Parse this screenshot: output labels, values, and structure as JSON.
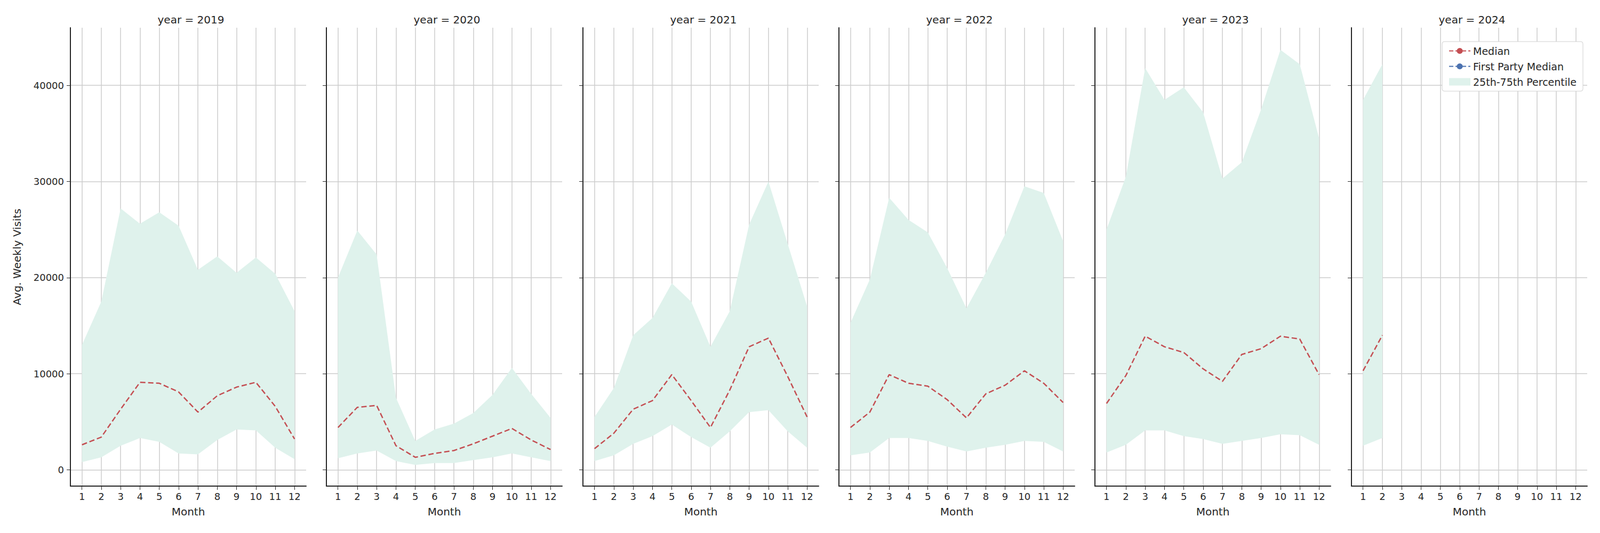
{
  "chart_data": [
    {
      "type": "line",
      "title": "year = 2019",
      "xlabel": "Month",
      "ylabel": "Avg. Weekly Visits",
      "x": [
        1,
        2,
        3,
        4,
        5,
        6,
        7,
        8,
        9,
        10,
        11,
        12
      ],
      "xlim": [
        0.4,
        12.6
      ],
      "xticks": [
        1,
        2,
        3,
        4,
        5,
        6,
        7,
        8,
        9,
        10,
        11,
        12
      ],
      "ylim": [
        -1700,
        46000
      ],
      "yticks": [
        0,
        10000,
        20000,
        30000,
        40000
      ],
      "grid": true,
      "series": [
        {
          "name": "Median",
          "color": "#c44e52",
          "line_style": "dashed",
          "values": [
            2600,
            3400,
            6300,
            9100,
            9000,
            8100,
            6000,
            7700,
            8600,
            9100,
            6600,
            3200
          ]
        },
        {
          "name": "First Party Median",
          "color": "#4c72b0",
          "line_style": "dashed",
          "values": [
            null,
            null,
            null,
            null,
            null,
            null,
            null,
            null,
            null,
            null,
            null,
            null
          ]
        },
        {
          "name": "25th-75th Percentile",
          "type": "area",
          "color": "#dff2ec",
          "lower": [
            800,
            1300,
            2500,
            3300,
            2900,
            1700,
            1600,
            3100,
            4200,
            4100,
            2300,
            1100
          ],
          "upper": [
            13000,
            17500,
            27200,
            25600,
            26800,
            25400,
            20800,
            22200,
            20500,
            22100,
            20400,
            16500
          ]
        }
      ]
    },
    {
      "type": "line",
      "title": "year = 2020",
      "xlabel": "Month",
      "x": [
        1,
        2,
        3,
        4,
        5,
        6,
        7,
        8,
        9,
        10,
        11,
        12
      ],
      "xlim": [
        0.4,
        12.6
      ],
      "xticks": [
        1,
        2,
        3,
        4,
        5,
        6,
        7,
        8,
        9,
        10,
        11,
        12
      ],
      "ylim": [
        -1700,
        46000
      ],
      "yticks": [
        0,
        10000,
        20000,
        30000,
        40000
      ],
      "grid": true,
      "tick_labels": "x",
      "series": [
        {
          "name": "Median",
          "color": "#c44e52",
          "line_style": "dashed",
          "values": [
            4400,
            6500,
            6700,
            2500,
            1300,
            1700,
            2000,
            2700,
            3500,
            4300,
            3100,
            2100
          ]
        },
        {
          "name": "First Party Median",
          "color": "#4c72b0",
          "line_style": "dashed",
          "values": [
            null,
            null,
            null,
            null,
            null,
            null,
            null,
            null,
            null,
            null,
            null,
            null
          ]
        },
        {
          "name": "25th-75th Percentile",
          "type": "area",
          "color": "#dff2ec",
          "lower": [
            1200,
            1700,
            2000,
            900,
            500,
            700,
            700,
            1000,
            1300,
            1700,
            1300,
            900
          ],
          "upper": [
            20000,
            24900,
            22400,
            7500,
            3000,
            4200,
            4800,
            5900,
            7800,
            10600,
            7900,
            5400
          ]
        }
      ]
    },
    {
      "type": "line",
      "title": "year = 2021",
      "xlabel": "Month",
      "x": [
        1,
        2,
        3,
        4,
        5,
        6,
        7,
        8,
        9,
        10,
        11,
        12
      ],
      "xlim": [
        0.4,
        12.6
      ],
      "xticks": [
        1,
        2,
        3,
        4,
        5,
        6,
        7,
        8,
        9,
        10,
        11,
        12
      ],
      "ylim": [
        -1700,
        46000
      ],
      "yticks": [
        0,
        10000,
        20000,
        30000,
        40000
      ],
      "grid": true,
      "tick_labels": "x",
      "series": [
        {
          "name": "Median",
          "color": "#c44e52",
          "line_style": "dashed",
          "values": [
            2200,
            3800,
            6300,
            7200,
            9900,
            7200,
            4400,
            8300,
            12800,
            13700,
            9700,
            5500
          ]
        },
        {
          "name": "First Party Median",
          "color": "#4c72b0",
          "line_style": "dashed",
          "values": [
            null,
            null,
            null,
            null,
            null,
            null,
            null,
            null,
            null,
            null,
            null,
            null
          ]
        },
        {
          "name": "25th-75th Percentile",
          "type": "area",
          "color": "#dff2ec",
          "lower": [
            900,
            1500,
            2700,
            3500,
            4700,
            3400,
            2300,
            4000,
            6000,
            6200,
            4000,
            2300
          ],
          "upper": [
            5500,
            8500,
            14000,
            15800,
            19400,
            17500,
            12800,
            16500,
            25500,
            30000,
            23500,
            17000
          ]
        }
      ]
    },
    {
      "type": "line",
      "title": "year = 2022",
      "xlabel": "Month",
      "x": [
        1,
        2,
        3,
        4,
        5,
        6,
        7,
        8,
        9,
        10,
        11,
        12
      ],
      "xlim": [
        0.4,
        12.6
      ],
      "xticks": [
        1,
        2,
        3,
        4,
        5,
        6,
        7,
        8,
        9,
        10,
        11,
        12
      ],
      "ylim": [
        -1700,
        46000
      ],
      "yticks": [
        0,
        10000,
        20000,
        30000,
        40000
      ],
      "grid": true,
      "tick_labels": "x",
      "series": [
        {
          "name": "Median",
          "color": "#c44e52",
          "line_style": "dashed",
          "values": [
            4400,
            6000,
            9900,
            9000,
            8700,
            7300,
            5400,
            7900,
            8800,
            10300,
            9000,
            7000
          ]
        },
        {
          "name": "First Party Median",
          "color": "#4c72b0",
          "line_style": "dashed",
          "values": [
            null,
            null,
            null,
            null,
            null,
            null,
            null,
            null,
            null,
            null,
            null,
            null
          ]
        },
        {
          "name": "25th-75th Percentile",
          "type": "area",
          "color": "#dff2ec",
          "lower": [
            1500,
            1800,
            3300,
            3300,
            3000,
            2400,
            1900,
            2300,
            2600,
            3000,
            2900,
            1900
          ],
          "upper": [
            15300,
            19800,
            28300,
            26000,
            24700,
            21000,
            16800,
            20500,
            24500,
            29500,
            28800,
            23800
          ]
        }
      ]
    },
    {
      "type": "line",
      "title": "year = 2023",
      "xlabel": "Month",
      "x": [
        1,
        2,
        3,
        4,
        5,
        6,
        7,
        8,
        9,
        10,
        11,
        12
      ],
      "xlim": [
        0.4,
        12.6
      ],
      "xticks": [
        1,
        2,
        3,
        4,
        5,
        6,
        7,
        8,
        9,
        10,
        11,
        12
      ],
      "ylim": [
        -1700,
        46000
      ],
      "yticks": [
        0,
        10000,
        20000,
        30000,
        40000
      ],
      "grid": true,
      "tick_labels": "x",
      "series": [
        {
          "name": "Median",
          "color": "#c44e52",
          "line_style": "dashed",
          "values": [
            6900,
            9800,
            13900,
            12800,
            12200,
            10500,
            9200,
            12000,
            12600,
            13900,
            13600,
            9900
          ]
        },
        {
          "name": "First Party Median",
          "color": "#4c72b0",
          "line_style": "dashed",
          "values": [
            null,
            null,
            null,
            null,
            null,
            null,
            null,
            null,
            null,
            null,
            null,
            null
          ]
        },
        {
          "name": "25th-75th Percentile",
          "type": "area",
          "color": "#dff2ec",
          "lower": [
            1800,
            2600,
            4100,
            4100,
            3500,
            3200,
            2700,
            3000,
            3300,
            3700,
            3600,
            2600
          ],
          "upper": [
            25000,
            30500,
            41800,
            38500,
            39800,
            37200,
            30300,
            32000,
            37500,
            43700,
            42200,
            34500
          ]
        }
      ]
    },
    {
      "type": "line",
      "title": "year = 2024",
      "xlabel": "Month",
      "x": [
        1,
        2,
        3,
        4,
        5,
        6,
        7,
        8,
        9,
        10,
        11,
        12
      ],
      "xlim": [
        0.4,
        12.6
      ],
      "xticks": [
        1,
        2,
        3,
        4,
        5,
        6,
        7,
        8,
        9,
        10,
        11,
        12
      ],
      "ylim": [
        -1700,
        46000
      ],
      "yticks": [
        0,
        10000,
        20000,
        30000,
        40000
      ],
      "grid": true,
      "tick_labels": "x",
      "legend": "upper right",
      "series": [
        {
          "name": "Median",
          "color": "#c44e52",
          "line_style": "dashed",
          "values": [
            10300,
            14000,
            null,
            null,
            null,
            null,
            null,
            null,
            null,
            null,
            null,
            null
          ]
        },
        {
          "name": "First Party Median",
          "color": "#4c72b0",
          "line_style": "dashed",
          "values": [
            null,
            null,
            null,
            null,
            null,
            null,
            null,
            null,
            null,
            null,
            null,
            null
          ]
        },
        {
          "name": "25th-75th Percentile",
          "type": "area",
          "color": "#dff2ec",
          "lower": [
            2500,
            3300,
            null,
            null,
            null,
            null,
            null,
            null,
            null,
            null,
            null,
            null
          ],
          "upper": [
            38500,
            42200,
            null,
            null,
            null,
            null,
            null,
            null,
            null,
            null,
            null,
            null
          ]
        }
      ]
    }
  ]
}
